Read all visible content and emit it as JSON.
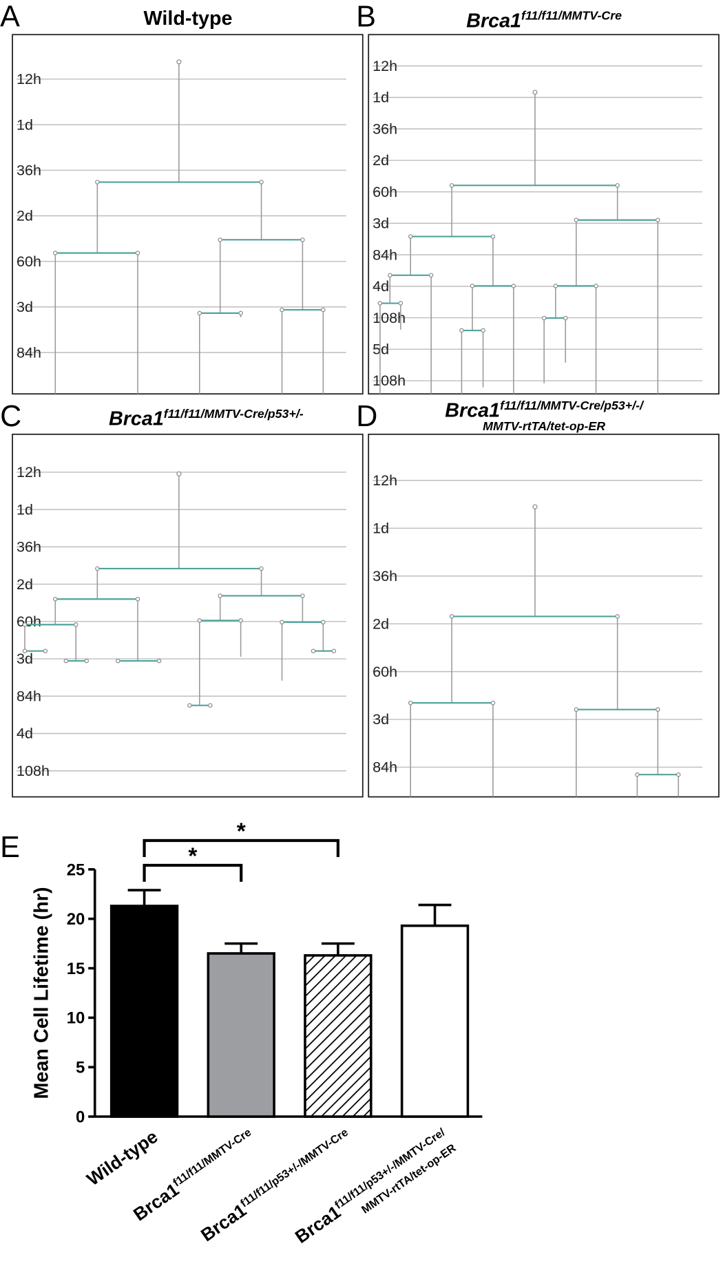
{
  "panels": [
    {
      "label": "A",
      "title": {
        "base": "Wild-type"
      },
      "time_labels": [
        "12h",
        "1d",
        "36h",
        "2d",
        "60h",
        "3d",
        "84h"
      ]
    },
    {
      "label": "B",
      "title": {
        "base": "Brca1",
        "sup": "f11/f11/MMTV-Cre"
      },
      "time_labels": [
        "12h",
        "1d",
        "36h",
        "2d",
        "60h",
        "3d",
        "84h",
        "4d",
        "108h",
        "5d",
        "108h"
      ]
    },
    {
      "label": "C",
      "title": {
        "base": "Brca1",
        "sup": "f11/f11/MMTV-Cre/p53+/-"
      },
      "time_labels": [
        "12h",
        "1d",
        "36h",
        "2d",
        "60h",
        "3d",
        "84h",
        "4d",
        "108h"
      ]
    },
    {
      "label": "D",
      "title": {
        "base": "Brca1",
        "sup": "f11/f11/MMTV-Cre/p53+/-/",
        "line2": "MMTV-rtTA/tet-op-ER"
      },
      "time_labels": [
        "12h",
        "1d",
        "36h",
        "2d",
        "60h",
        "3d",
        "84h"
      ]
    }
  ],
  "chart_data": {
    "type": "bar",
    "label": "E",
    "ylabel": "Mean Cell Lifetime (hr)",
    "categories": [
      "Wild-type",
      {
        "base": "Brca1",
        "sup": "f11/f11/MMTV-Cre"
      },
      {
        "base": "Brca1",
        "sup": "f11/f11/p53+/-/MMTV-Cre"
      },
      {
        "base": "Brca1",
        "sup": "f11/f11/p53+/-/MMTV-Cre/",
        "line2": "MMTV-rtTA/tet-op-ER"
      }
    ],
    "values": [
      21.3,
      16.5,
      16.3,
      19.3
    ],
    "errors": [
      1.6,
      1.0,
      1.2,
      2.1
    ],
    "colors": [
      "#000000",
      "#9d9ea1",
      "#ffffff",
      "#ffffff"
    ],
    "patterns": [
      "solid",
      "solid",
      "hatch",
      "solid"
    ],
    "ylim": [
      0,
      25
    ],
    "yticks": [
      0,
      5,
      10,
      15,
      20,
      25
    ],
    "significance": [
      {
        "from": 0,
        "to": 1,
        "label": "*"
      },
      {
        "from": 0,
        "to": 2,
        "label": "*"
      }
    ]
  }
}
